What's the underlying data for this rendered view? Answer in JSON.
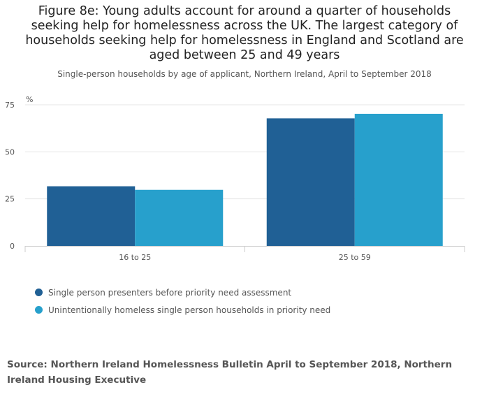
{
  "title": "Figure 8e: Young adults account for around a quarter of households seeking help for homelessness across the UK. The largest category of households seeking help for homelessness in England and Scotland are aged between 25 and 49 years",
  "subtitle": "Single-person households by age of applicant, Northern Ireland, April to September 2018",
  "source": "Source: Northern Ireland Homelessness Bulletin April to September 2018, Northern Ireland Housing Executive",
  "colors": {
    "series1": "#206095",
    "series2": "#27a0cc"
  },
  "chart_data": {
    "type": "bar",
    "title": "Figure 8e: Young adults account for around a quarter of households seeking help for homelessness across the UK. The largest category of households seeking help for homelessness in England and Scotland are aged between 25 and 49 years",
    "subtitle": "Single-person households by age of applicant, Northern Ireland, April to September 2018",
    "ylabel": "%",
    "xlabel": "",
    "categories": [
      "16 to 25",
      "25 to 59"
    ],
    "series": [
      {
        "name": "Single person presenters before priority need assessment",
        "values": [
          31.7,
          67.8
        ]
      },
      {
        "name": "Unintentionally homeless single person households in priority need",
        "values": [
          29.8,
          70.2
        ]
      }
    ],
    "ylim": [
      0,
      75
    ],
    "yticks": [
      0,
      25,
      50,
      75
    ],
    "grid": true,
    "legend_position": "bottom-left"
  }
}
